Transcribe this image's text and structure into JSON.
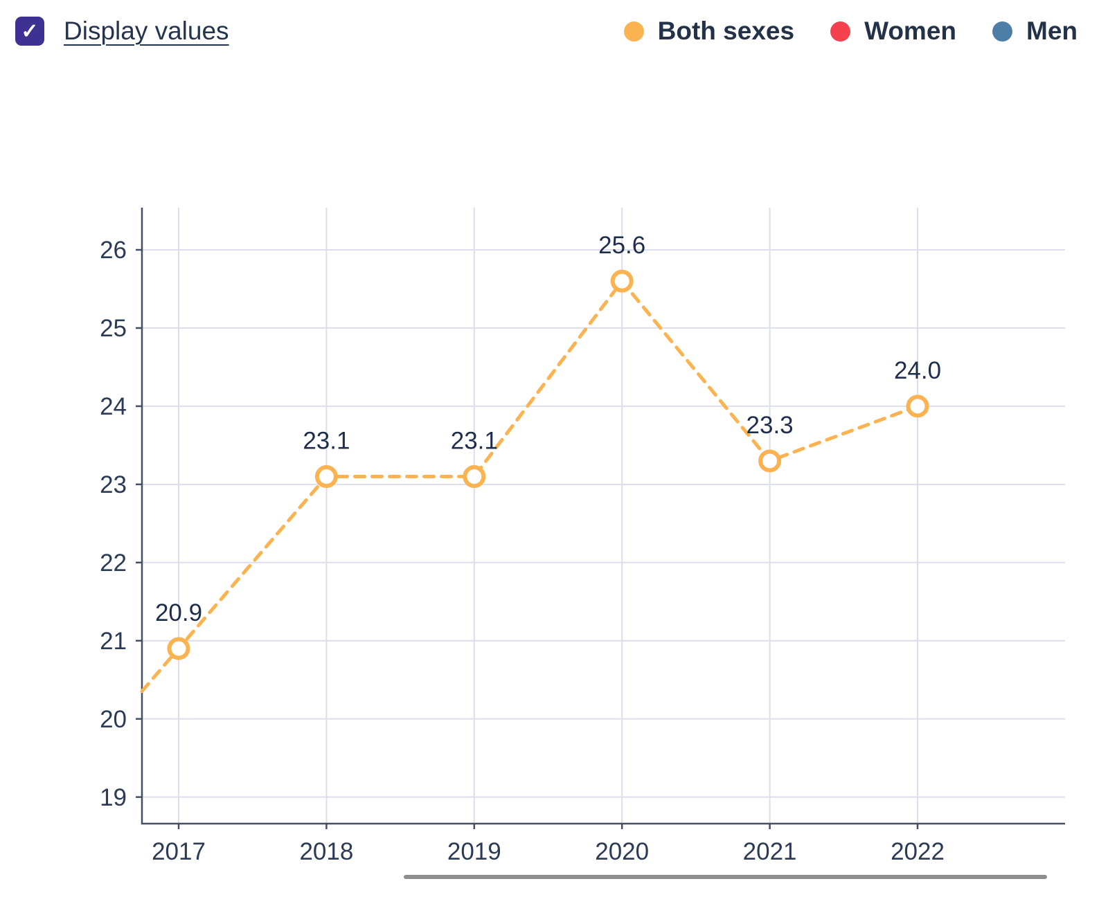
{
  "header": {
    "display_values_label": "Display values",
    "checkbox_checked": true
  },
  "icons": {
    "check": "✓"
  },
  "legend": [
    {
      "label": "Both sexes",
      "color": "#FBB351"
    },
    {
      "label": "Women",
      "color": "#F5414D"
    },
    {
      "label": "Men",
      "color": "#4D7EA8"
    }
  ],
  "colors": {
    "accent_purple": "#3E3192",
    "grid": "#DCDEED",
    "axis": "#454E63",
    "tick_label": "#2B3A55",
    "value_label": "#1F2D4D",
    "scrollbar": "#8E8E8E",
    "marker_fill": "#FFFFFF"
  },
  "chart_data": {
    "type": "line",
    "title": "",
    "xlabel": "",
    "ylabel": "",
    "categories": [
      "2017",
      "2018",
      "2019",
      "2020",
      "2021",
      "2022"
    ],
    "series": [
      {
        "name": "Both sexes",
        "color": "#FBB351",
        "line_style": "dashed",
        "marker": "open-circle",
        "values": [
          20.9,
          23.1,
          23.1,
          25.6,
          23.3,
          24.0
        ],
        "point_labels": [
          "20.9",
          "23.1",
          "23.1",
          "25.6",
          "23.3",
          "24.0"
        ]
      }
    ],
    "y_ticks": [
      19,
      20,
      21,
      22,
      23,
      24,
      25,
      26
    ],
    "ylim": [
      18.66,
      26.54
    ],
    "grid": true,
    "legend_position": "top-right"
  }
}
